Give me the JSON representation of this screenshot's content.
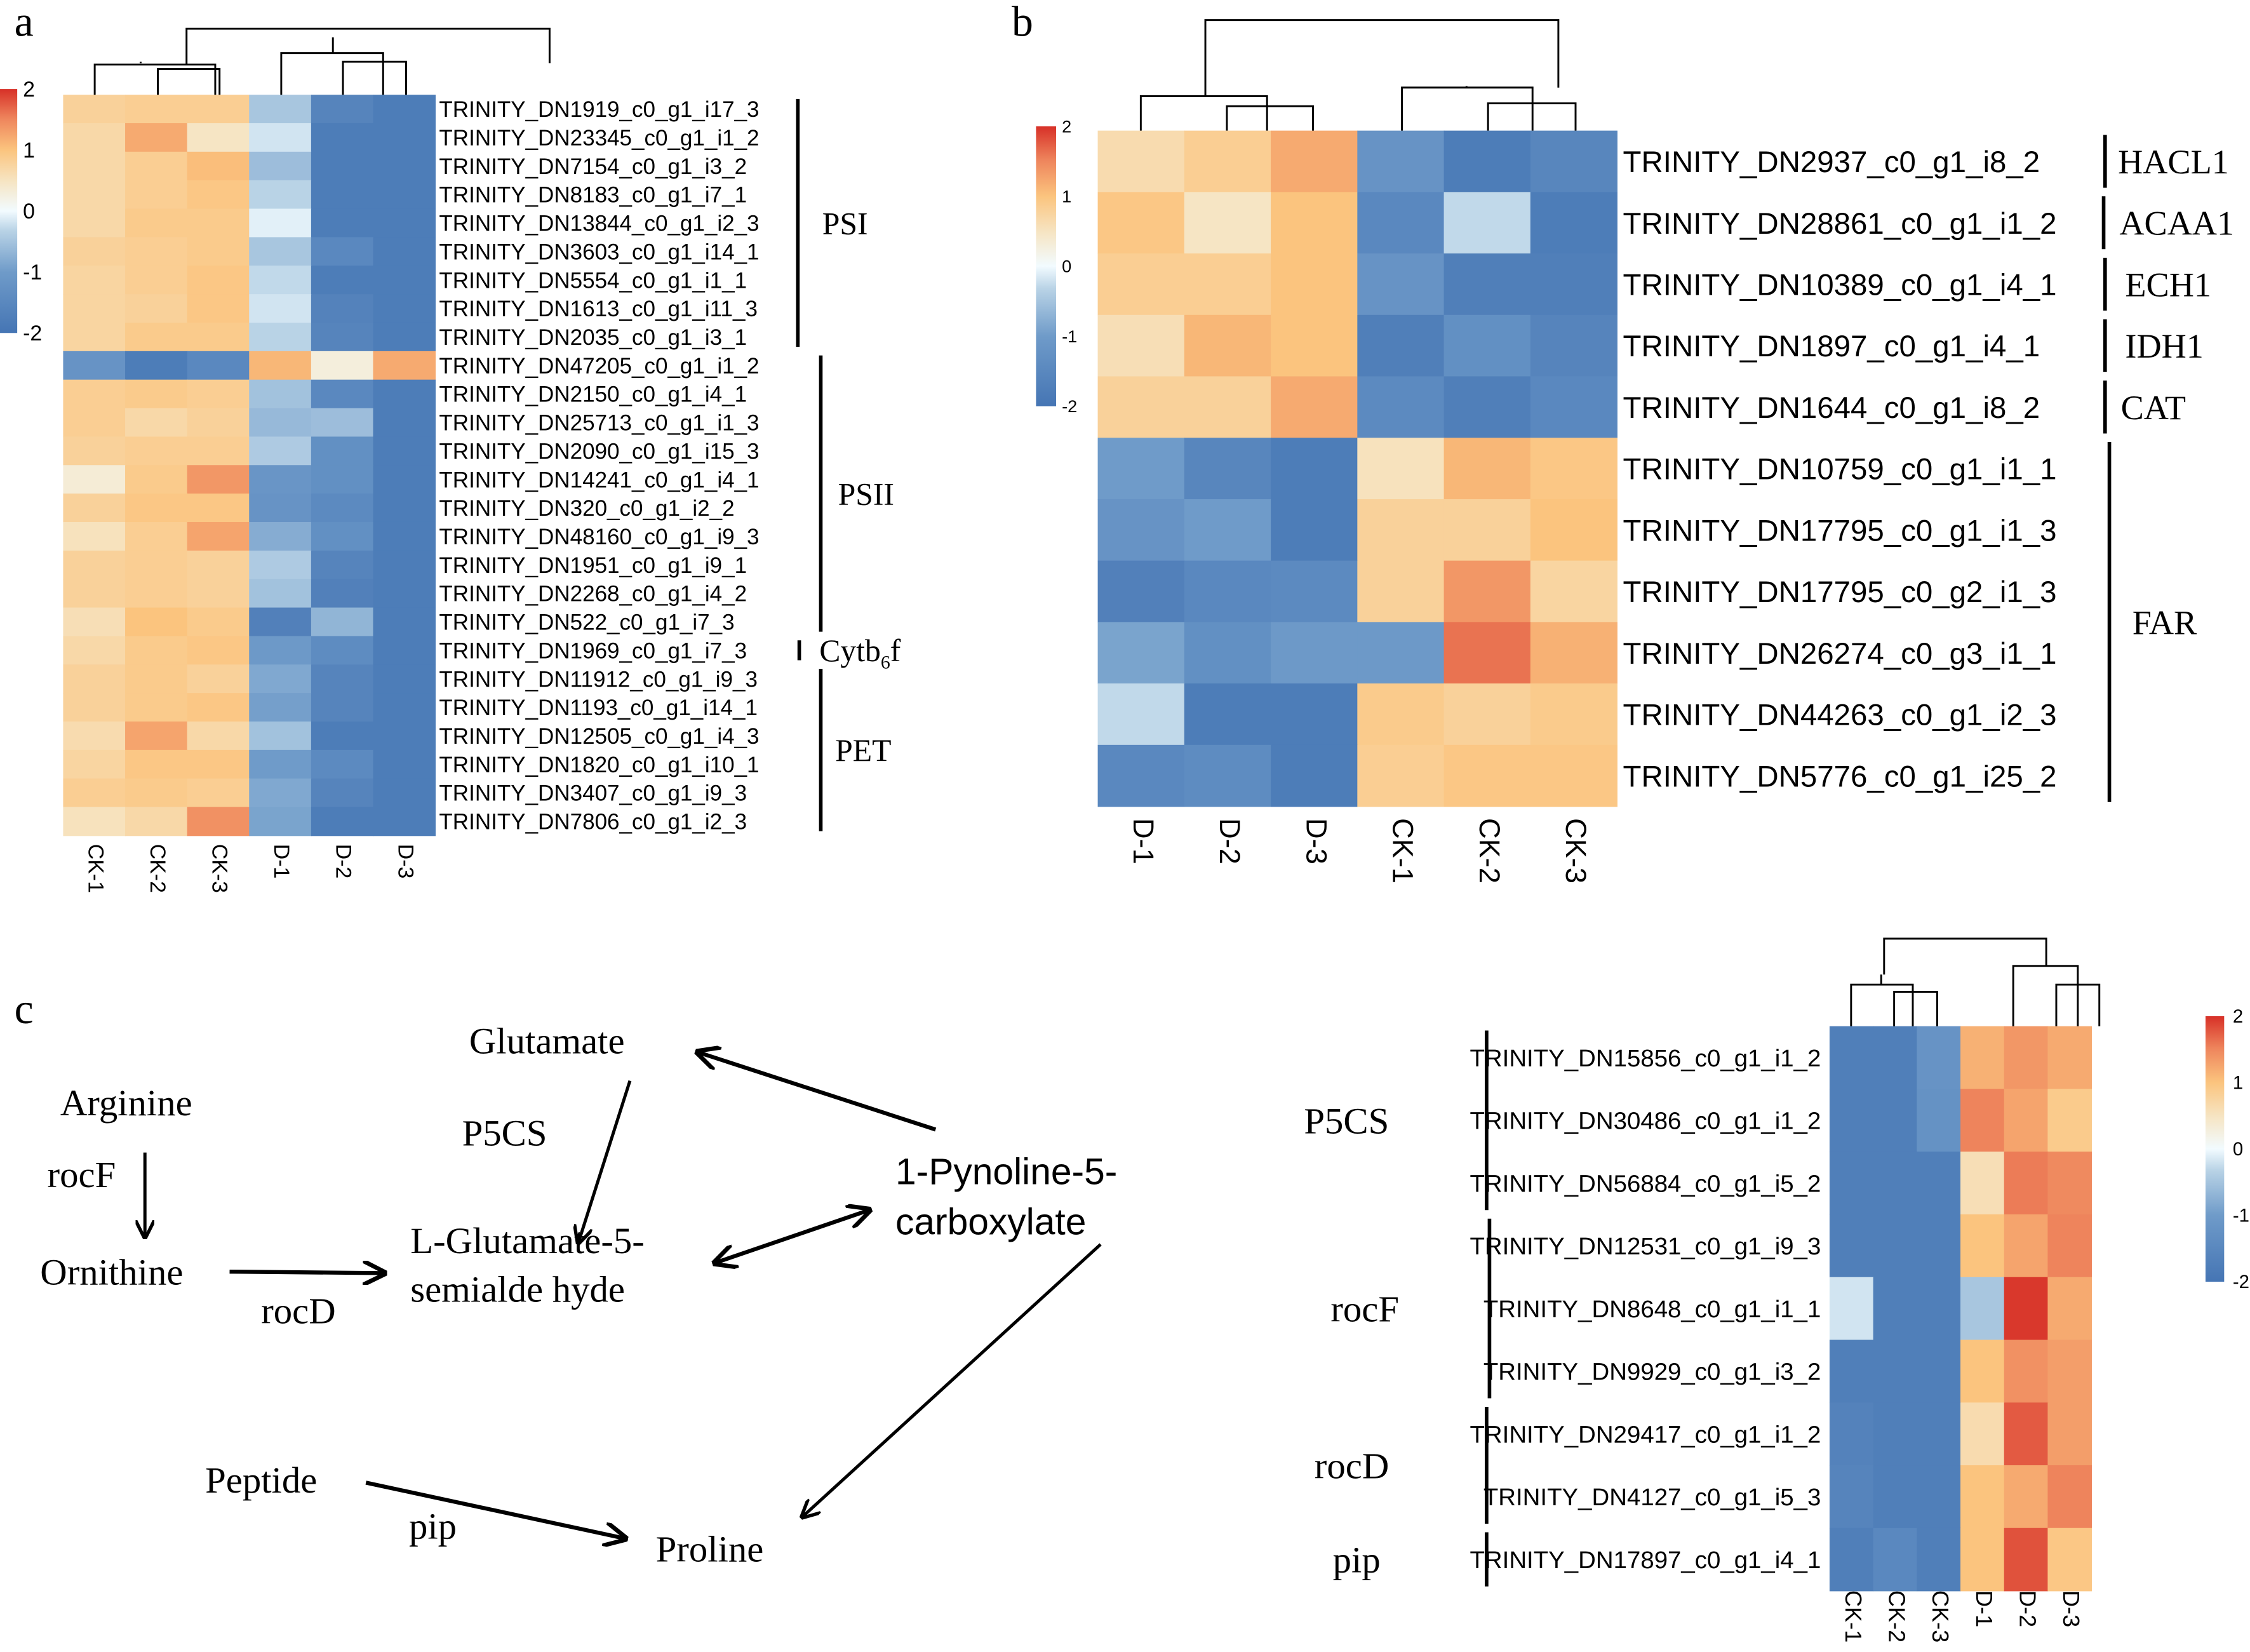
{
  "chart_data": [
    {
      "panel": "a",
      "type": "heatmap",
      "title": "",
      "colorbar": {
        "min": -2,
        "max": 2,
        "ticks": [
          "2",
          "1",
          "0",
          "-1",
          "-2"
        ]
      },
      "columns": [
        "CK-1",
        "CK-2",
        "CK-3",
        "D-1",
        "D-2",
        "D-3"
      ],
      "rows": [
        "TRINITY_DN1919_c0_g1_i17_3",
        "TRINITY_DN23345_c0_g1_i1_2",
        "TRINITY_DN7154_c0_g1_i3_2",
        "TRINITY_DN8183_c0_g1_i7_1",
        "TRINITY_DN13844_c0_g1_i2_3",
        "TRINITY_DN3603_c0_g1_i14_1",
        "TRINITY_DN5554_c0_g1_i1_1",
        "TRINITY_DN1613_c0_g1_i11_3",
        "TRINITY_DN2035_c0_g1_i3_1",
        "TRINITY_DN47205_c0_g1_i1_2",
        "TRINITY_DN2150_c0_g1_i4_1",
        "TRINITY_DN25713_c0_g1_i1_3",
        "TRINITY_DN2090_c0_g1_i15_3",
        "TRINITY_DN14241_c0_g1_i4_1",
        "TRINITY_DN320_c0_g1_i2_2",
        "TRINITY_DN48160_c0_g1_i9_3",
        "TRINITY_DN1951_c0_g1_i9_1",
        "TRINITY_DN2268_c0_g1_i4_2",
        "TRINITY_DN522_c0_g1_i7_3",
        "TRINITY_DN1969_c0_g1_i7_3",
        "TRINITY_DN11912_c0_g1_i9_3",
        "TRINITY_DN1193_c0_g1_i14_1",
        "TRINITY_DN12505_c0_g1_i4_3",
        "TRINITY_DN1820_c0_g1_i10_1",
        "TRINITY_DN3407_c0_g1_i9_3",
        "TRINITY_DN7806_c0_g1_i2_3"
      ],
      "values": [
        [
          0.8,
          0.85,
          0.85,
          -0.5,
          -1.6,
          -1.8
        ],
        [
          0.7,
          1.2,
          0.5,
          -0.2,
          -1.8,
          -1.8
        ],
        [
          0.7,
          0.85,
          1.05,
          -0.6,
          -1.8,
          -1.8
        ],
        [
          0.7,
          0.85,
          0.95,
          -0.35,
          -1.8,
          -1.8
        ],
        [
          0.7,
          0.9,
          0.9,
          -0.1,
          -1.8,
          -1.8
        ],
        [
          0.8,
          0.85,
          0.9,
          -0.5,
          -1.5,
          -1.8
        ],
        [
          0.75,
          0.85,
          0.95,
          -0.3,
          -1.8,
          -1.8
        ],
        [
          0.75,
          0.8,
          0.95,
          -0.2,
          -1.65,
          -1.8
        ],
        [
          0.75,
          0.9,
          0.9,
          -0.35,
          -1.6,
          -1.8
        ],
        [
          -1.2,
          -1.8,
          -1.5,
          1.1,
          0.3,
          1.2
        ],
        [
          0.85,
          0.9,
          0.85,
          -0.55,
          -1.5,
          -1.8
        ],
        [
          0.85,
          0.7,
          0.8,
          -0.65,
          -0.6,
          -1.8
        ],
        [
          0.8,
          0.85,
          0.85,
          -0.45,
          -1.3,
          -1.8
        ],
        [
          0.35,
          0.9,
          1.35,
          -1.15,
          -1.3,
          -1.8
        ],
        [
          0.8,
          0.95,
          0.95,
          -1.2,
          -1.45,
          -1.8
        ],
        [
          0.55,
          0.85,
          1.25,
          -0.8,
          -1.3,
          -1.8
        ],
        [
          0.8,
          0.85,
          0.8,
          -0.45,
          -1.6,
          -1.8
        ],
        [
          0.8,
          0.85,
          0.8,
          -0.55,
          -1.7,
          -1.8
        ],
        [
          0.6,
          1.0,
          0.9,
          -1.7,
          -0.7,
          -1.8
        ],
        [
          0.7,
          0.9,
          0.95,
          -1.05,
          -1.4,
          -1.8
        ],
        [
          0.8,
          0.9,
          0.8,
          -0.85,
          -1.6,
          -1.8
        ],
        [
          0.8,
          0.9,
          0.95,
          -0.95,
          -1.6,
          -1.8
        ],
        [
          0.65,
          1.25,
          0.7,
          -0.55,
          -1.8,
          -1.8
        ],
        [
          0.75,
          0.95,
          0.95,
          -1.0,
          -1.45,
          -1.8
        ],
        [
          0.85,
          0.9,
          0.85,
          -0.85,
          -1.6,
          -1.8
        ],
        [
          0.55,
          0.7,
          1.4,
          -0.9,
          -1.8,
          -1.8
        ]
      ],
      "groups": [
        {
          "label": "PSI",
          "from": 0,
          "to": 8
        },
        {
          "label": "PSII",
          "from": 9,
          "to": 18
        },
        {
          "label": "Cytb6f",
          "label_main": "Cytb",
          "label_sub": "6",
          "label_tail": "f",
          "from": 19,
          "to": 19
        },
        {
          "label": "PET",
          "from": 20,
          "to": 25
        }
      ]
    },
    {
      "panel": "b",
      "type": "heatmap",
      "colorbar": {
        "min": -2,
        "max": 2,
        "ticks": [
          "2",
          "1",
          "0",
          "-1",
          "-2"
        ]
      },
      "columns": [
        "D-1",
        "D-2",
        "D-3",
        "CK-1",
        "CK-2",
        "CK-3"
      ],
      "rows": [
        "TRINITY_DN2937_c0_g1_i8_2",
        "TRINITY_DN28861_c0_g1_i1_2",
        "TRINITY_DN10389_c0_g1_i4_1",
        "TRINITY_DN1897_c0_g1_i4_1",
        "TRINITY_DN1644_c0_g1_i8_2",
        "TRINITY_DN10759_c0_g1_i1_1",
        "TRINITY_DN17795_c0_g1_i1_3",
        "TRINITY_DN17795_c0_g2_i1_3",
        "TRINITY_DN26274_c0_g3_i1_1",
        "TRINITY_DN44263_c0_g1_i2_3",
        "TRINITY_DN5776_c0_g1_i25_2"
      ],
      "values": [
        [
          0.65,
          0.85,
          1.2,
          -1.2,
          -1.8,
          -1.55
        ],
        [
          0.95,
          0.5,
          1.0,
          -1.5,
          -0.3,
          -1.8
        ],
        [
          0.85,
          0.85,
          1.0,
          -1.2,
          -1.75,
          -1.75
        ],
        [
          0.6,
          1.1,
          1.0,
          -1.75,
          -1.3,
          -1.6
        ],
        [
          0.8,
          0.8,
          1.2,
          -1.45,
          -1.75,
          -1.5
        ],
        [
          -1.0,
          -1.55,
          -1.8,
          0.55,
          1.1,
          0.95
        ],
        [
          -1.2,
          -1.0,
          -1.8,
          0.8,
          0.8,
          1.0
        ],
        [
          -1.7,
          -1.5,
          -1.45,
          0.8,
          1.35,
          0.75
        ],
        [
          -0.9,
          -1.3,
          -1.05,
          -1.05,
          1.6,
          1.15
        ],
        [
          -0.3,
          -1.8,
          -1.8,
          0.9,
          0.8,
          0.9
        ],
        [
          -1.5,
          -1.4,
          -1.8,
          0.85,
          0.95,
          0.95
        ]
      ],
      "groups": [
        {
          "label": "HACL1",
          "from": 0,
          "to": 0
        },
        {
          "label": "ACAA1",
          "from": 1,
          "to": 1
        },
        {
          "label": "ECH1",
          "from": 2,
          "to": 2
        },
        {
          "label": "IDH1",
          "from": 3,
          "to": 3
        },
        {
          "label": "CAT",
          "from": 4,
          "to": 4
        },
        {
          "label": "FAR",
          "from": 5,
          "to": 10
        }
      ]
    },
    {
      "panel": "c",
      "type": "heatmap",
      "colorbar": {
        "min": -2,
        "max": 2,
        "ticks": [
          "2",
          "1",
          "0",
          "-1",
          "-2"
        ]
      },
      "columns": [
        "CK-1",
        "CK-2",
        "CK-3",
        "D-1",
        "D-2",
        "D-3"
      ],
      "rows": [
        "TRINITY_DN15856_c0_g1_i1_2",
        "TRINITY_DN30486_c0_g1_i1_2",
        "TRINITY_DN56884_c0_g1_i5_2",
        "TRINITY_DN12531_c0_g1_i9_3",
        "TRINITY_DN8648_c0_g1_i1_1",
        "TRINITY_DN9929_c0_g1_i3_2",
        "TRINITY_DN29417_c0_g1_i1_2",
        "TRINITY_DN4127_c0_g1_i5_3",
        "TRINITY_DN17897_c0_g1_i4_1"
      ],
      "values": [
        [
          -1.75,
          -1.75,
          -1.2,
          1.15,
          1.35,
          1.2
        ],
        [
          -1.75,
          -1.75,
          -1.25,
          1.5,
          1.25,
          0.9
        ],
        [
          -1.75,
          -1.75,
          -1.75,
          0.6,
          1.55,
          1.45
        ],
        [
          -1.75,
          -1.75,
          -1.75,
          1.0,
          1.25,
          1.5
        ],
        [
          -0.2,
          -1.75,
          -1.75,
          -0.5,
          1.95,
          1.2
        ],
        [
          -1.75,
          -1.75,
          -1.75,
          1.0,
          1.4,
          1.3
        ],
        [
          -1.65,
          -1.75,
          -1.75,
          0.65,
          1.75,
          1.3
        ],
        [
          -1.6,
          -1.75,
          -1.75,
          1.0,
          1.2,
          1.5
        ],
        [
          -1.75,
          -1.5,
          -1.75,
          1.0,
          1.8,
          0.95
        ]
      ],
      "groups": [
        {
          "label": "P5CS",
          "from": 0,
          "to": 2
        },
        {
          "label": "rocF",
          "from": 3,
          "to": 5
        },
        {
          "label": "rocD",
          "from": 6,
          "to": 7
        },
        {
          "label": "pip",
          "from": 8,
          "to": 8
        }
      ]
    }
  ],
  "panel_labels": [
    "a",
    "b",
    "c"
  ],
  "pathway": {
    "nodes": {
      "glutamate": "Glutamate",
      "arginine": "Arginine",
      "ornithine": "Ornithine",
      "glu_semi_1": "L-Glutamate-5-",
      "glu_semi_2": "semialde hyde",
      "p5c_1": "1-Pynoline-5-",
      "p5c_2": "carboxylate",
      "peptide": "Peptide",
      "proline": "Proline"
    },
    "enzymes": {
      "p5cs": "P5CS",
      "rocf": "rocF",
      "rocd": "rocD",
      "pip": "pip"
    }
  },
  "colors": {
    "low": "#4575b4",
    "mid": "#ffffff",
    "high": "#d73027",
    "text": "#000000"
  }
}
